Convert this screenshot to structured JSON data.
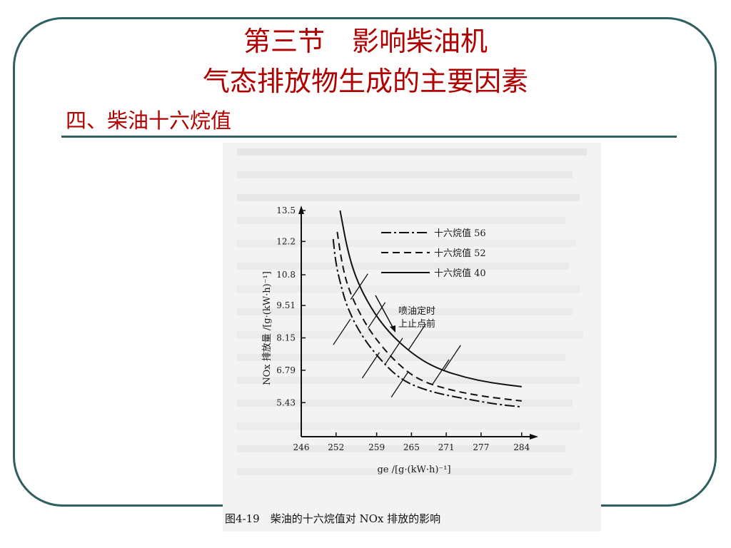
{
  "slide": {
    "title_line1": "第三节　影响柴油机",
    "title_line2": "气态排放物生成的主要因素",
    "subtitle": "四、柴油十六烷值"
  },
  "colors": {
    "title": "#b00000",
    "frame": "#2f5f5f"
  },
  "figure": {
    "caption": "图4-19　柴油的十六烷值对 NOx 排放的影响",
    "annotation_line1": "喷油定时",
    "annotation_line2": "上止点前"
  },
  "chart_data": {
    "type": "line",
    "ylabel": "NOx 排放量 /[g·(kW·h)⁻¹]",
    "xlabel": "ge /[g·(kW·h)⁻¹]",
    "x_ticks": [
      "246",
      "252",
      "259",
      "265",
      "271",
      "277",
      "284"
    ],
    "y_ticks": [
      "13.5",
      "12.2",
      "10.8",
      "9.51",
      "8.15",
      "6.79",
      "5.43"
    ],
    "xlim": [
      246,
      286
    ],
    "ylim": [
      4.0,
      13.5
    ],
    "series": [
      {
        "name": "十六烷值 56",
        "style": "dashdot",
        "points": [
          [
            251.5,
            12.3
          ],
          [
            252,
            11.2
          ],
          [
            253,
            10.2
          ],
          [
            254,
            9.4
          ],
          [
            256,
            8.4
          ],
          [
            259,
            7.4
          ],
          [
            263,
            6.4
          ],
          [
            268,
            5.9
          ],
          [
            274,
            5.6
          ],
          [
            280,
            5.35
          ],
          [
            284,
            5.25
          ]
        ]
      },
      {
        "name": "十六烷值 52",
        "style": "dashed",
        "points": [
          [
            252.2,
            12.6
          ],
          [
            253,
            11.3
          ],
          [
            254,
            10.3
          ],
          [
            256,
            9.2
          ],
          [
            258.5,
            8.2
          ],
          [
            262,
            7.2
          ],
          [
            266,
            6.4
          ],
          [
            271,
            6.0
          ],
          [
            277,
            5.7
          ],
          [
            284,
            5.5
          ]
        ]
      },
      {
        "name": "十六烷值 40",
        "style": "solid",
        "points": [
          [
            252.7,
            13.5
          ],
          [
            254,
            11.8
          ],
          [
            255.5,
            10.6
          ],
          [
            258,
            9.4
          ],
          [
            261,
            8.4
          ],
          [
            265,
            7.5
          ],
          [
            269,
            6.9
          ],
          [
            274,
            6.5
          ],
          [
            279,
            6.25
          ],
          [
            284,
            6.1
          ]
        ]
      }
    ]
  }
}
